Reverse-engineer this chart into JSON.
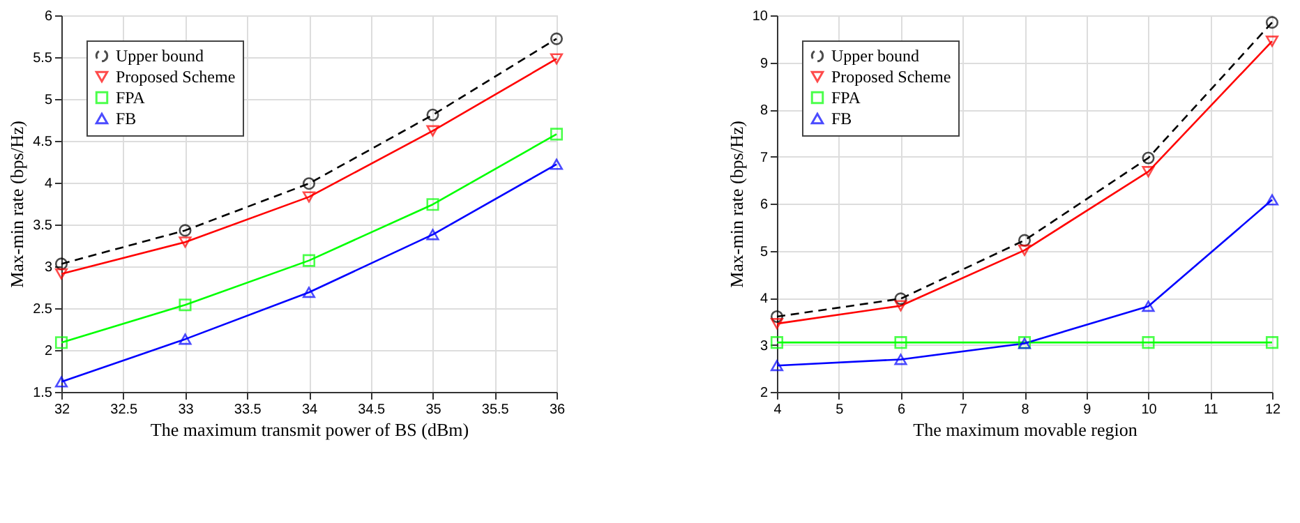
{
  "chart_data": [
    {
      "type": "line",
      "xlabel": "The maximum transmit power of BS (dBm)",
      "ylabel": "Max-min rate (bps/Hz)",
      "x": [
        32,
        33,
        34,
        35,
        36
      ],
      "series": [
        {
          "name": "Upper bound",
          "color": "#000000",
          "marker": "circle",
          "line_style": "dashed",
          "values": [
            3.03,
            3.43,
            3.99,
            4.81,
            5.72
          ]
        },
        {
          "name": "Proposed Scheme",
          "color": "#ff0000",
          "marker": "triangle-down",
          "line_style": "solid",
          "values": [
            2.91,
            3.29,
            3.83,
            4.62,
            5.48
          ]
        },
        {
          "name": "FPA",
          "color": "#00ff00",
          "marker": "square",
          "line_style": "solid",
          "values": [
            2.09,
            2.54,
            3.07,
            3.74,
            4.58
          ]
        },
        {
          "name": "FB",
          "color": "#0000ff",
          "marker": "triangle",
          "line_style": "solid",
          "values": [
            1.62,
            2.13,
            2.69,
            3.38,
            4.22
          ]
        }
      ],
      "xlim": [
        32,
        36
      ],
      "xticks": [
        32,
        32.5,
        33,
        33.5,
        34,
        34.5,
        35,
        35.5,
        36
      ],
      "ylim": [
        1.5,
        6
      ],
      "yticks": [
        1.5,
        2,
        2.5,
        3,
        3.5,
        4,
        4.5,
        5,
        5.5,
        6
      ],
      "grid": true,
      "legend": "top left"
    },
    {
      "type": "line",
      "xlabel": "The maximum movable region",
      "ylabel": "Max-min rate (bps/Hz)",
      "x": [
        4,
        6,
        8,
        10,
        12
      ],
      "series": [
        {
          "name": "Upper bound",
          "color": "#000000",
          "marker": "circle",
          "line_style": "dashed",
          "values": [
            3.6,
            3.98,
            5.22,
            6.97,
            9.85
          ]
        },
        {
          "name": "Proposed Scheme",
          "color": "#ff0000",
          "marker": "triangle-down",
          "line_style": "solid",
          "values": [
            3.45,
            3.83,
            5.01,
            6.68,
            9.45
          ]
        },
        {
          "name": "FPA",
          "color": "#00ff00",
          "marker": "square",
          "line_style": "solid",
          "values": [
            3.05,
            3.05,
            3.05,
            3.05,
            3.05
          ]
        },
        {
          "name": "FB",
          "color": "#0000ff",
          "marker": "triangle",
          "line_style": "solid",
          "values": [
            2.56,
            2.69,
            3.03,
            3.82,
            6.08
          ]
        }
      ],
      "xlim": [
        4,
        12
      ],
      "xticks": [
        4,
        5,
        6,
        7,
        8,
        9,
        10,
        11,
        12
      ],
      "ylim": [
        2,
        10
      ],
      "yticks": [
        2,
        3,
        4,
        5,
        6,
        7,
        8,
        9,
        10
      ],
      "grid": true,
      "legend": "top left"
    }
  ]
}
